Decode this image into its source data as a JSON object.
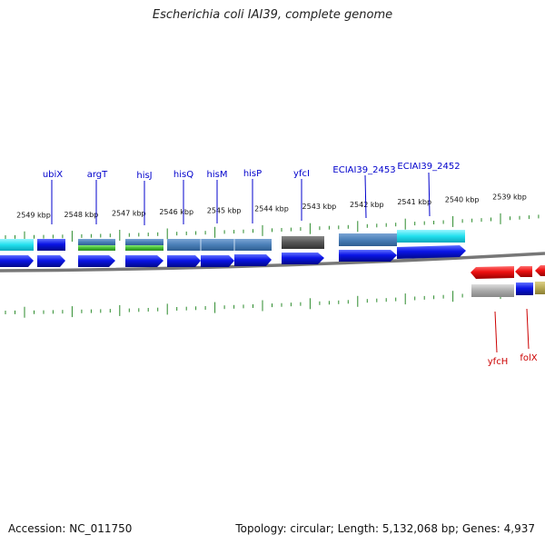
{
  "title": "Escherichia coli IAI39, complete genome",
  "footer": {
    "accession": "Accession: NC_011750",
    "summary": "Topology: circular; Length: 5,132,068 bp; Genes: 4,937"
  },
  "colors": {
    "forward_label": "#0000cc",
    "reverse_label": "#cc0000",
    "cds": "#0a14e6",
    "reverse_cds": "#ee1111",
    "backbone": "#777777",
    "ticks": "#2a8a2a",
    "cyan": "#22e0ee",
    "steel": "#4a7fb8",
    "green": "#44bb33",
    "dark_gray": "#555555",
    "light_gray": "#aaaaaa",
    "khaki": "#b8aa55"
  },
  "kbp_labels": [
    {
      "text": "2549 kbp",
      "pos": 2549
    },
    {
      "text": "2548 kbp",
      "pos": 2548
    },
    {
      "text": "2547 kbp",
      "pos": 2547
    },
    {
      "text": "2546 kbp",
      "pos": 2546
    },
    {
      "text": "2545 kbp",
      "pos": 2545
    },
    {
      "text": "2544 kbp",
      "pos": 2544
    },
    {
      "text": "2543 kbp",
      "pos": 2543
    },
    {
      "text": "2542 kbp",
      "pos": 2542
    },
    {
      "text": "2541 kbp",
      "pos": 2541
    },
    {
      "text": "2540 kbp",
      "pos": 2540
    },
    {
      "text": "2539 kbp",
      "pos": 2539
    }
  ],
  "forward_genes": [
    {
      "label": "ubiX"
    },
    {
      "label": "argT"
    },
    {
      "label": "hisJ"
    },
    {
      "label": "hisQ"
    },
    {
      "label": "hisM"
    },
    {
      "label": "hisP"
    },
    {
      "label": "yfcI"
    },
    {
      "label": "ECIAI39_2453"
    },
    {
      "label": "ECIAI39_2452"
    }
  ],
  "reverse_genes": [
    {
      "label": "yfcH"
    },
    {
      "label": "folX"
    }
  ]
}
